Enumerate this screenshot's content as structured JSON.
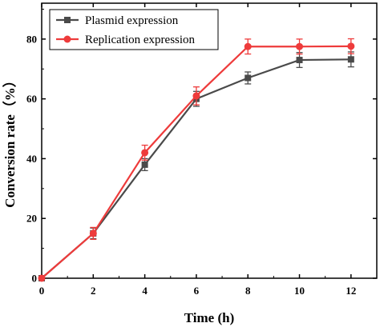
{
  "chart_data": {
    "type": "line",
    "xlabel": "Time (h)",
    "ylabel": "Conversion rate（%）",
    "xlim": [
      0,
      13
    ],
    "ylim": [
      0,
      92
    ],
    "xticks": [
      0,
      2,
      4,
      6,
      8,
      10,
      12
    ],
    "yticks": [
      0,
      20,
      40,
      60,
      80
    ],
    "grid": false,
    "legend_position": "top-left",
    "series": [
      {
        "name": "Plasmid expression",
        "color": "#4a4a4a",
        "marker": "square",
        "x": [
          0,
          2,
          4,
          6,
          8,
          10,
          12
        ],
        "y": [
          0,
          15,
          38,
          60,
          67,
          73,
          73.2
        ],
        "error": [
          0,
          1.8,
          2,
          2.5,
          2,
          2.5,
          2.5
        ]
      },
      {
        "name": "Replication expression",
        "color": "#ee3b3b",
        "marker": "circle",
        "x": [
          0,
          2,
          4,
          6,
          8,
          10,
          12
        ],
        "y": [
          0,
          15,
          42,
          61,
          77.5,
          77.5,
          77.6
        ],
        "error": [
          0,
          2,
          2.5,
          3,
          2.5,
          2.5,
          2.5
        ]
      }
    ]
  }
}
